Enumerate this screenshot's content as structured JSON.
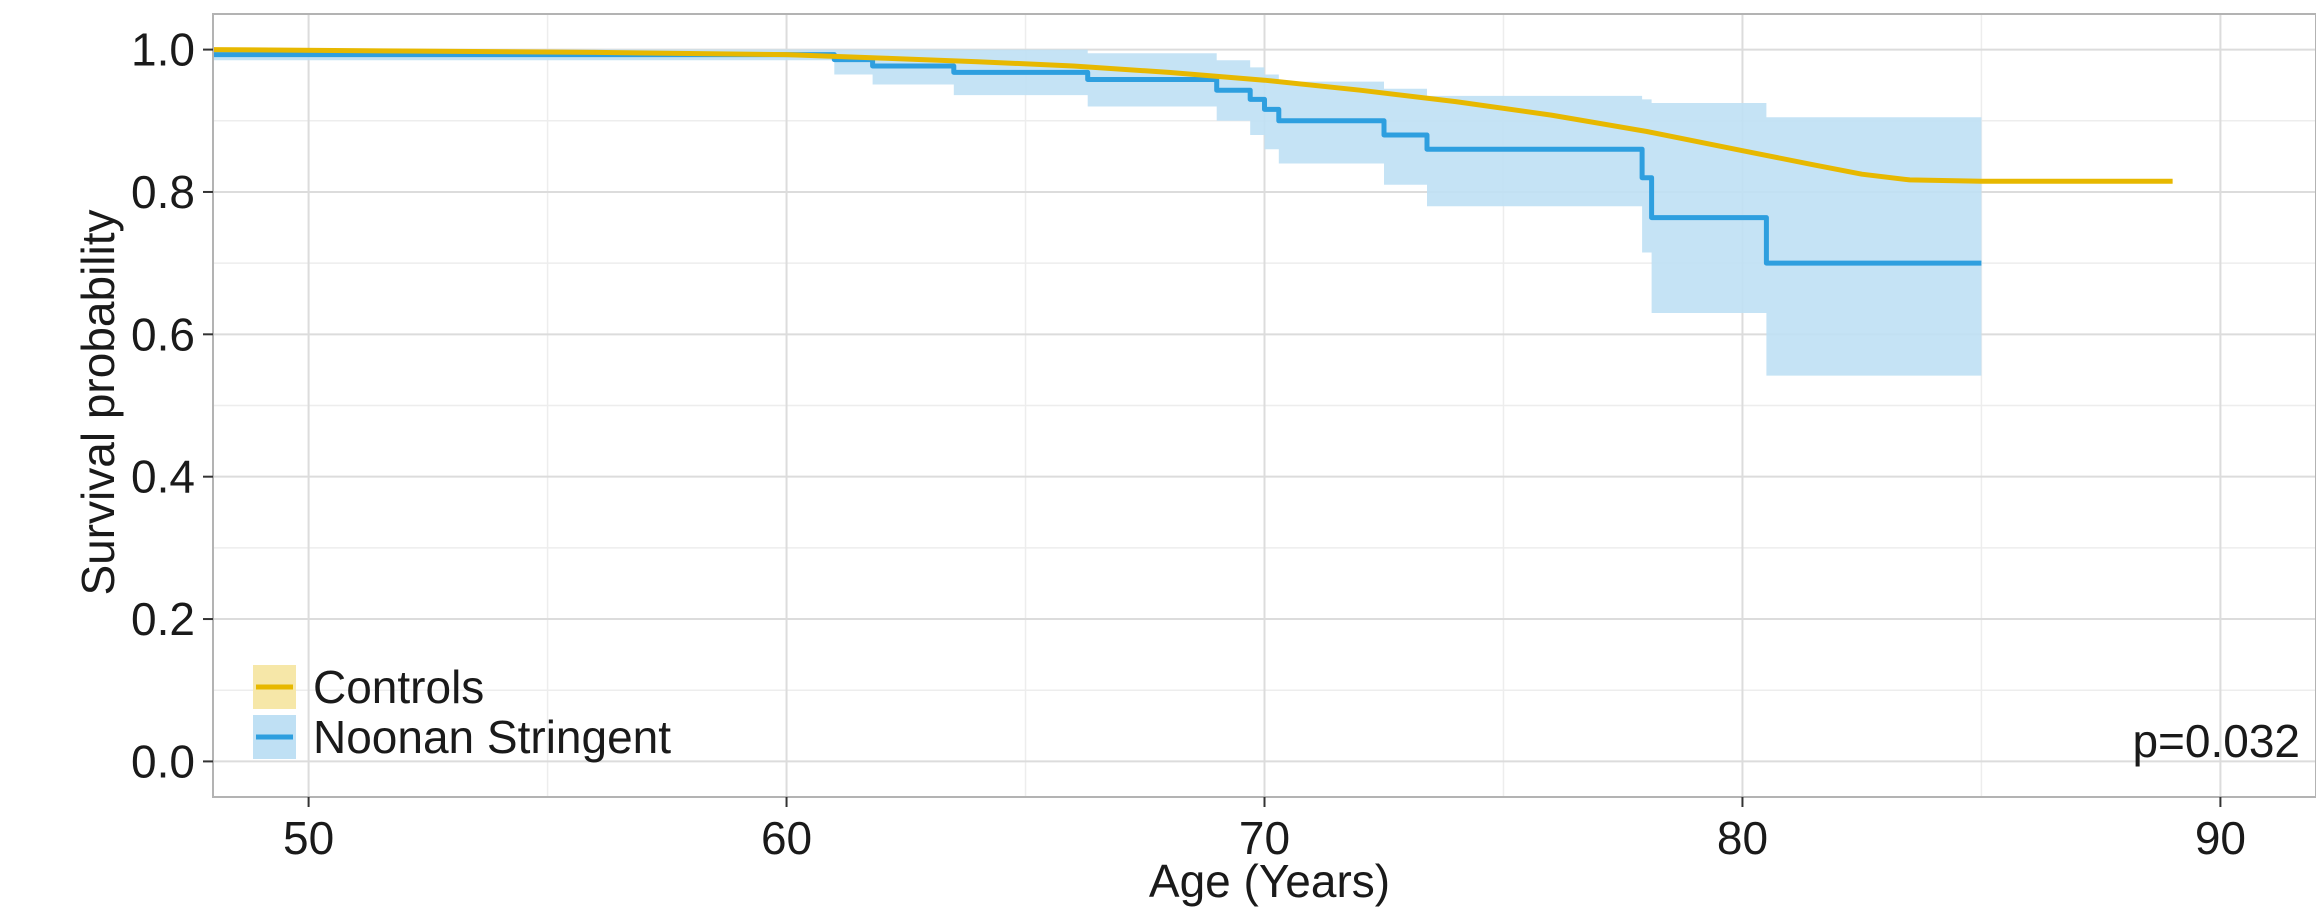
{
  "chart_data": {
    "type": "line",
    "xlabel": "Age (Years)",
    "ylabel": "Survival probability",
    "xlim": [
      48,
      92
    ],
    "ylim": [
      -0.05,
      1.05
    ],
    "x_ticks": [
      50,
      60,
      70,
      80,
      90
    ],
    "x_tick_labels": [
      "50",
      "60",
      "70",
      "80",
      "90"
    ],
    "y_ticks": [
      0.0,
      0.2,
      0.4,
      0.6,
      0.8,
      1.0
    ],
    "y_tick_labels": [
      "0.0",
      "0.2",
      "0.4",
      "0.6",
      "0.8",
      "1.0"
    ],
    "grid": true,
    "legend_position": "bottom-left",
    "annotation": "p=0.032",
    "series": [
      {
        "name": "Controls",
        "color": "#E7B800",
        "band_color": "#F6E7A8",
        "x": [
          48,
          52,
          56,
          60,
          62,
          64,
          66,
          68,
          70,
          72,
          74,
          76,
          78,
          80,
          81.5,
          82.5,
          83.5,
          85,
          89
        ],
        "y": [
          1.0,
          0.998,
          0.996,
          0.993,
          0.988,
          0.983,
          0.977,
          0.968,
          0.957,
          0.943,
          0.927,
          0.908,
          0.885,
          0.858,
          0.838,
          0.825,
          0.817,
          0.815,
          0.815
        ],
        "lower": [
          0.999,
          0.997,
          0.995,
          0.991,
          0.986,
          0.981,
          0.975,
          0.966,
          0.955,
          0.941,
          0.925,
          0.905,
          0.882,
          0.855,
          0.835,
          0.822,
          0.814,
          0.812,
          0.812
        ],
        "upper": [
          1.0,
          0.999,
          0.997,
          0.995,
          0.99,
          0.985,
          0.979,
          0.97,
          0.959,
          0.945,
          0.929,
          0.911,
          0.888,
          0.861,
          0.841,
          0.828,
          0.82,
          0.818,
          0.818
        ]
      },
      {
        "name": "Noonan Stringent",
        "color": "#2E9FDF",
        "band_color": "#BFE0F4",
        "step": true,
        "x": [
          48,
          61.0,
          61.8,
          63.5,
          66.3,
          69.0,
          69.7,
          70.0,
          70.3,
          72.5,
          73.4,
          77.9,
          78.1,
          80.5,
          85.0
        ],
        "y": [
          0.993,
          0.986,
          0.977,
          0.968,
          0.958,
          0.943,
          0.93,
          0.916,
          0.9,
          0.88,
          0.86,
          0.82,
          0.764,
          0.7,
          0.7
        ],
        "lower": [
          0.985,
          0.965,
          0.951,
          0.936,
          0.92,
          0.9,
          0.88,
          0.86,
          0.84,
          0.81,
          0.78,
          0.715,
          0.63,
          0.542,
          0.542
        ],
        "upper": [
          1.0,
          1.0,
          1.0,
          1.0,
          0.995,
          0.985,
          0.975,
          0.965,
          0.955,
          0.945,
          0.935,
          0.93,
          0.925,
          0.905,
          0.905
        ]
      }
    ]
  }
}
